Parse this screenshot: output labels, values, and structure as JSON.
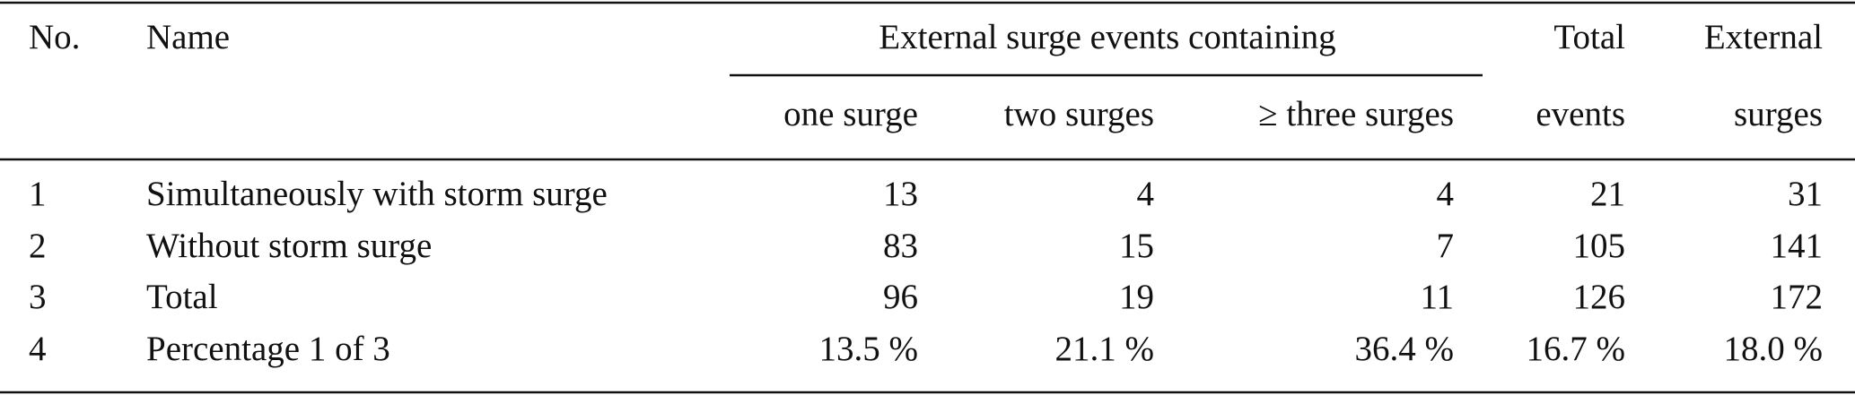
{
  "table": {
    "header": {
      "no": "No.",
      "name": "Name",
      "group": "External surge events containing",
      "sub": [
        "one surge",
        "two surges",
        "≥ three surges"
      ],
      "total": [
        "Total",
        "events"
      ],
      "external": [
        "External",
        "surges"
      ]
    },
    "rows": [
      [
        "1",
        "Simultaneously with storm surge",
        "13",
        "4",
        "4",
        "21",
        "31"
      ],
      [
        "2",
        "Without storm surge",
        "83",
        "15",
        "7",
        "105",
        "141"
      ],
      [
        "3",
        "Total",
        "96",
        "19",
        "11",
        "126",
        "172"
      ],
      [
        "4",
        "Percentage 1 of 3",
        "13.5 %",
        "21.1 %",
        "36.4 %",
        "16.7 %",
        "18.0 %"
      ]
    ]
  }
}
